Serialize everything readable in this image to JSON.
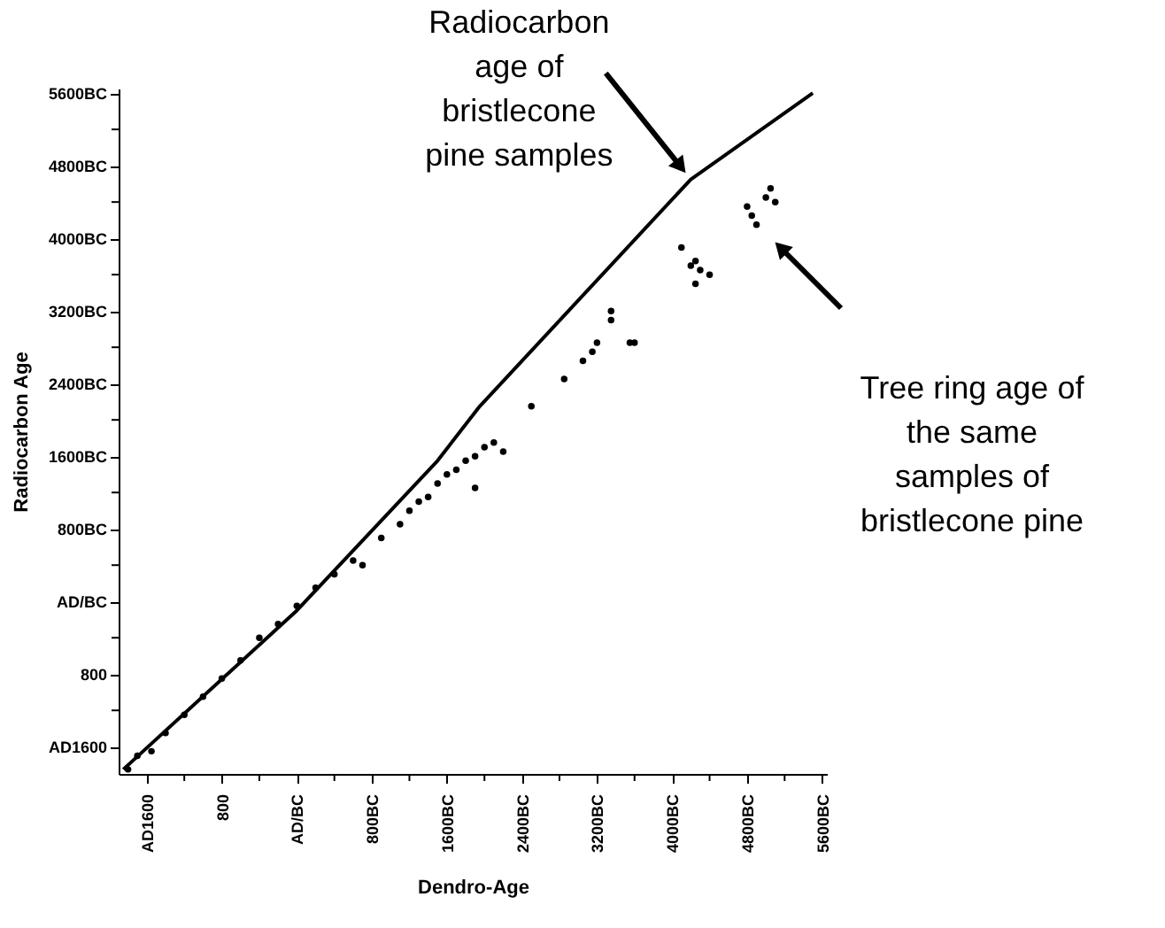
{
  "chart_data": {
    "type": "scatter",
    "xlabel": "Dendro-Age",
    "ylabel": "Radiocarbon Age",
    "xlim": [
      -1900,
      5650
    ],
    "ylim": [
      -1900,
      5650
    ],
    "xticks": [
      {
        "value": -1600,
        "label": "AD1600"
      },
      {
        "value": -1200,
        "label": null
      },
      {
        "value": -800,
        "label": "800"
      },
      {
        "value": -400,
        "label": null
      },
      {
        "value": 0,
        "label": "AD/BC"
      },
      {
        "value": 400,
        "label": null
      },
      {
        "value": 800,
        "label": "800BC"
      },
      {
        "value": 1200,
        "label": null
      },
      {
        "value": 1600,
        "label": "1600BC"
      },
      {
        "value": 2000,
        "label": null
      },
      {
        "value": 2400,
        "label": "2400BC"
      },
      {
        "value": 2800,
        "label": null
      },
      {
        "value": 3200,
        "label": "3200BC"
      },
      {
        "value": 3600,
        "label": null
      },
      {
        "value": 4000,
        "label": "4000BC"
      },
      {
        "value": 4400,
        "label": null
      },
      {
        "value": 4800,
        "label": "4800BC"
      },
      {
        "value": 5200,
        "label": null
      },
      {
        "value": 5600,
        "label": "5600BC"
      }
    ],
    "yticks": [
      {
        "value": -1600,
        "label": "AD1600"
      },
      {
        "value": -1200,
        "label": null
      },
      {
        "value": -800,
        "label": "800"
      },
      {
        "value": -400,
        "label": null
      },
      {
        "value": 0,
        "label": "AD/BC"
      },
      {
        "value": 400,
        "label": null
      },
      {
        "value": 800,
        "label": "800BC"
      },
      {
        "value": 1200,
        "label": null
      },
      {
        "value": 1600,
        "label": "1600BC"
      },
      {
        "value": 2000,
        "label": null
      },
      {
        "value": 2400,
        "label": "2400BC"
      },
      {
        "value": 2800,
        "label": null
      },
      {
        "value": 3200,
        "label": "3200BC"
      },
      {
        "value": 3600,
        "label": null
      },
      {
        "value": 4000,
        "label": "4000BC"
      },
      {
        "value": 4400,
        "label": null
      },
      {
        "value": 4800,
        "label": "4800BC"
      },
      {
        "value": 5200,
        "label": null
      },
      {
        "value": 5600,
        "label": "5600BC"
      }
    ],
    "grid": false,
    "legend": false,
    "series": [
      {
        "type": "line",
        "color": "#000000",
        "line_style": "solid",
        "x": [
          -1850,
          0,
          1500,
          1950,
          4200,
          5500
        ],
        "values": [
          -1850,
          -100,
          1550,
          2150,
          4650,
          5600
        ]
      },
      {
        "type": "scatter",
        "color": "#000000",
        "marker": "circle",
        "x": [
          -1800,
          -1700,
          -1550,
          -1400,
          -1200,
          -1000,
          -800,
          -600,
          -400,
          -200,
          0,
          200,
          400,
          600,
          700,
          900,
          1100,
          1200,
          1300,
          1400,
          1500,
          1600,
          1700,
          1800,
          1900,
          2000,
          2100,
          2200,
          1900,
          2500,
          2850,
          3050,
          3150,
          3350,
          3550,
          3200,
          3600,
          3350,
          4100,
          4200,
          4250,
          4300,
          4400,
          4250,
          4800,
          4850,
          4900,
          5000,
          5050,
          5100
        ],
        "values": [
          -1850,
          -1700,
          -1650,
          -1450,
          -1250,
          -1050,
          -850,
          -650,
          -400,
          -250,
          -50,
          150,
          300,
          450,
          400,
          700,
          850,
          1000,
          1100,
          1150,
          1300,
          1400,
          1450,
          1550,
          1600,
          1700,
          1750,
          1650,
          1250,
          2150,
          2450,
          2650,
          2750,
          3100,
          2850,
          2850,
          2850,
          3200,
          3900,
          3700,
          3750,
          3650,
          3600,
          3500,
          4350,
          4250,
          4150,
          4450,
          4550,
          4400
        ]
      }
    ],
    "annotations": [
      {
        "text": "Radiocarbon\nage of\nbristlecone\npine samples",
        "x": 4200,
        "y": 4650
      },
      "Tree ring age of\nthe same\nsamples of\nbristlecone pine"
    ]
  }
}
